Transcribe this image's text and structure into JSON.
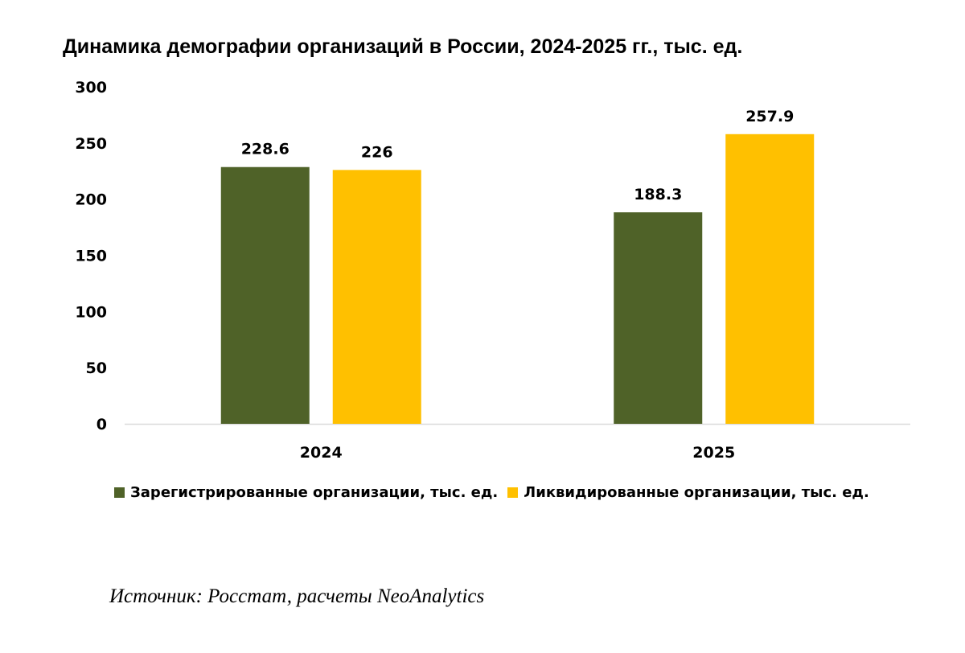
{
  "chart_data": {
    "type": "bar",
    "title": "Динамика демографии организаций в России, 2024-2025 гг., тыс. ед.",
    "categories": [
      "2024",
      "2025"
    ],
    "series": [
      {
        "name": "Зарегистрированные организации, тыс. ед.",
        "values": [
          228.6,
          188.3
        ],
        "color": "#4f6228",
        "labels": [
          "228.6",
          "188.3"
        ]
      },
      {
        "name": "Ликвидированные организации, тыс. ед.",
        "values": [
          226,
          257.9
        ],
        "color": "#ffc000",
        "labels": [
          "226",
          "257.9"
        ]
      }
    ],
    "ylim": [
      0,
      300
    ],
    "yticks": [
      "0",
      "50",
      "100",
      "150",
      "200",
      "250",
      "300"
    ],
    "grid": false,
    "legend_position": "bottom"
  },
  "source_text": "Источник: Росстат, расчеты NeoAnalytics"
}
